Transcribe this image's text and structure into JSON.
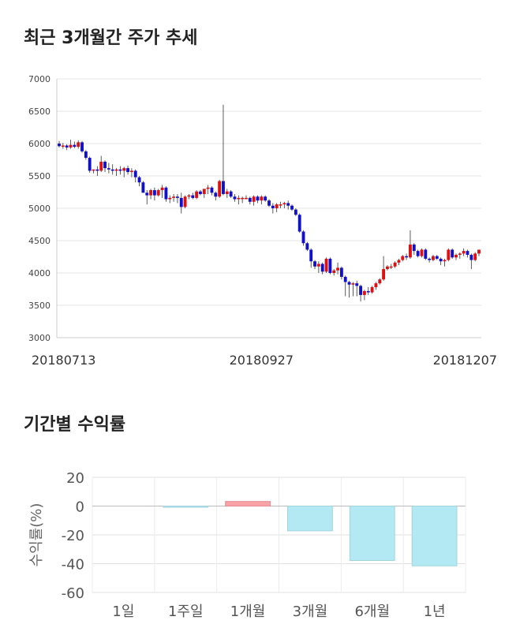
{
  "titles": {
    "price_trend": "최근 3개월간 주가 추세",
    "returns": "기간별 수익률"
  },
  "colors": {
    "up": "#dd1111",
    "down": "#1111cc",
    "grid": "#e6e6e6",
    "bar_positive": "#f7a3a8",
    "bar_negative": "#b3e9f3"
  },
  "chart_data": [
    {
      "type": "candlestick",
      "title": "최근 3개월간 주가 추세",
      "ylim": [
        3000,
        7000
      ],
      "yticks": [
        "7000",
        "6500",
        "6000",
        "5500",
        "5000",
        "4500",
        "4000",
        "3500",
        "3000"
      ],
      "xtick_labels": [
        "20180713",
        "20180927",
        "20181207"
      ],
      "xtick_index": [
        0,
        53,
        109
      ],
      "grid": true,
      "candles": [
        [
          6000,
          6040,
          5940,
          5960
        ],
        [
          5960,
          6010,
          5920,
          5970
        ],
        [
          5970,
          5990,
          5900,
          5940
        ],
        [
          5940,
          6060,
          5920,
          5980
        ],
        [
          5980,
          6030,
          5930,
          5950
        ],
        [
          5950,
          6050,
          5920,
          6020
        ],
        [
          6020,
          6040,
          5860,
          5880
        ],
        [
          5880,
          5900,
          5750,
          5780
        ],
        [
          5780,
          5800,
          5550,
          5580
        ],
        [
          5580,
          5600,
          5540,
          5600
        ],
        [
          5600,
          5650,
          5500,
          5580
        ],
        [
          5580,
          5810,
          5560,
          5720
        ],
        [
          5720,
          5740,
          5560,
          5620
        ],
        [
          5620,
          5700,
          5540,
          5600
        ],
        [
          5600,
          5680,
          5520,
          5580
        ],
        [
          5580,
          5620,
          5500,
          5600
        ],
        [
          5600,
          5650,
          5520,
          5580
        ],
        [
          5580,
          5640,
          5480,
          5620
        ],
        [
          5620,
          5660,
          5520,
          5560
        ],
        [
          5560,
          5620,
          5480,
          5580
        ],
        [
          5580,
          5600,
          5400,
          5480
        ],
        [
          5480,
          5500,
          5340,
          5400
        ],
        [
          5400,
          5420,
          5240,
          5240
        ],
        [
          5240,
          5280,
          5060,
          5200
        ],
        [
          5200,
          5300,
          5140,
          5280
        ],
        [
          5280,
          5320,
          5120,
          5200
        ],
        [
          5200,
          5300,
          5180,
          5280
        ],
        [
          5280,
          5360,
          5160,
          5320
        ],
        [
          5320,
          5340,
          5100,
          5140
        ],
        [
          5140,
          5200,
          5080,
          5160
        ],
        [
          5160,
          5220,
          5100,
          5180
        ],
        [
          5180,
          5220,
          5080,
          5160
        ],
        [
          5160,
          5240,
          4920,
          5020
        ],
        [
          5020,
          5200,
          5000,
          5180
        ],
        [
          5180,
          5220,
          5140,
          5200
        ],
        [
          5200,
          5240,
          5140,
          5160
        ],
        [
          5160,
          5280,
          5140,
          5260
        ],
        [
          5260,
          5280,
          5200,
          5220
        ],
        [
          5220,
          5260,
          5160,
          5300
        ],
        [
          5300,
          5360,
          5220,
          5320
        ],
        [
          5320,
          5340,
          5200,
          5240
        ],
        [
          5240,
          5260,
          5120,
          5180
        ],
        [
          5180,
          5440,
          5160,
          5420
        ],
        [
          5420,
          6600,
          5200,
          5220
        ],
        [
          5220,
          5300,
          5160,
          5260
        ],
        [
          5260,
          5280,
          5160,
          5180
        ],
        [
          5180,
          5220,
          5100,
          5140
        ],
        [
          5140,
          5200,
          5060,
          5160
        ],
        [
          5160,
          5180,
          5080,
          5160
        ],
        [
          5160,
          5200,
          5140,
          5160
        ],
        [
          5160,
          5180,
          5060,
          5100
        ],
        [
          5100,
          5200,
          5040,
          5180
        ],
        [
          5180,
          5200,
          5080,
          5120
        ],
        [
          5120,
          5200,
          5060,
          5180
        ],
        [
          5180,
          5200,
          5100,
          5120
        ],
        [
          5120,
          5140,
          5020,
          5040
        ],
        [
          5040,
          5080,
          4920,
          5000
        ],
        [
          5000,
          5080,
          4940,
          5060
        ],
        [
          5060,
          5100,
          5000,
          5060
        ],
        [
          5060,
          5100,
          5000,
          5080
        ],
        [
          5080,
          5120,
          4980,
          5040
        ],
        [
          5040,
          5060,
          4960,
          4980
        ],
        [
          4980,
          5000,
          4880,
          4900
        ],
        [
          4900,
          4920,
          4620,
          4640
        ],
        [
          4640,
          4660,
          4420,
          4460
        ],
        [
          4460,
          4480,
          4340,
          4360
        ],
        [
          4360,
          4380,
          4080,
          4180
        ],
        [
          4180,
          4200,
          4060,
          4100
        ],
        [
          4100,
          4180,
          4000,
          4140
        ],
        [
          4140,
          4160,
          3980,
          4020
        ],
        [
          4020,
          4240,
          4000,
          4220
        ],
        [
          4220,
          4240,
          3980,
          4000
        ],
        [
          4000,
          4060,
          3960,
          4040
        ],
        [
          4040,
          4160,
          3980,
          4080
        ],
        [
          4080,
          4100,
          3900,
          3940
        ],
        [
          3940,
          3960,
          3640,
          3860
        ],
        [
          3860,
          3880,
          3620,
          3820
        ],
        [
          3820,
          3860,
          3640,
          3840
        ],
        [
          3840,
          3880,
          3640,
          3800
        ],
        [
          3800,
          3820,
          3560,
          3660
        ],
        [
          3660,
          3740,
          3580,
          3720
        ],
        [
          3720,
          3780,
          3660,
          3700
        ],
        [
          3700,
          3800,
          3680,
          3780
        ],
        [
          3780,
          3860,
          3740,
          3840
        ],
        [
          3840,
          3920,
          3820,
          3900
        ],
        [
          3900,
          4260,
          3880,
          4060
        ],
        [
          4060,
          4120,
          4040,
          4100
        ],
        [
          4100,
          4140,
          4060,
          4100
        ],
        [
          4100,
          4180,
          4080,
          4160
        ],
        [
          4160,
          4220,
          4120,
          4200
        ],
        [
          4200,
          4280,
          4180,
          4260
        ],
        [
          4260,
          4300,
          4200,
          4240
        ],
        [
          4240,
          4660,
          4220,
          4440
        ],
        [
          4440,
          4460,
          4280,
          4340
        ],
        [
          4340,
          4360,
          4240,
          4260
        ],
        [
          4260,
          4380,
          4240,
          4360
        ],
        [
          4360,
          4380,
          4200,
          4220
        ],
        [
          4220,
          4240,
          4160,
          4200
        ],
        [
          4200,
          4280,
          4180,
          4260
        ],
        [
          4260,
          4280,
          4200,
          4220
        ],
        [
          4220,
          4240,
          4120,
          4180
        ],
        [
          4180,
          4220,
          4100,
          4200
        ],
        [
          4200,
          4380,
          4180,
          4360
        ],
        [
          4360,
          4380,
          4220,
          4240
        ],
        [
          4240,
          4300,
          4200,
          4280
        ],
        [
          4280,
          4320,
          4220,
          4300
        ],
        [
          4300,
          4380,
          4260,
          4340
        ],
        [
          4340,
          4360,
          4240,
          4280
        ],
        [
          4280,
          4300,
          4060,
          4200
        ],
        [
          4200,
          4320,
          4180,
          4300
        ],
        [
          4300,
          4360,
          4260,
          4360
        ]
      ]
    },
    {
      "type": "bar",
      "title": "기간별 수익률",
      "ylabel": "수익률(%)",
      "ylim": [
        -60,
        20
      ],
      "yticks": [
        "20",
        "0",
        "-20",
        "-40",
        "-60"
      ],
      "categories": [
        "1일",
        "1주일",
        "1개월",
        "3개월",
        "6개월",
        "1년"
      ],
      "values": [
        0,
        -0.8,
        3.2,
        -17.2,
        -37.8,
        -41.5
      ],
      "grid": true
    }
  ]
}
